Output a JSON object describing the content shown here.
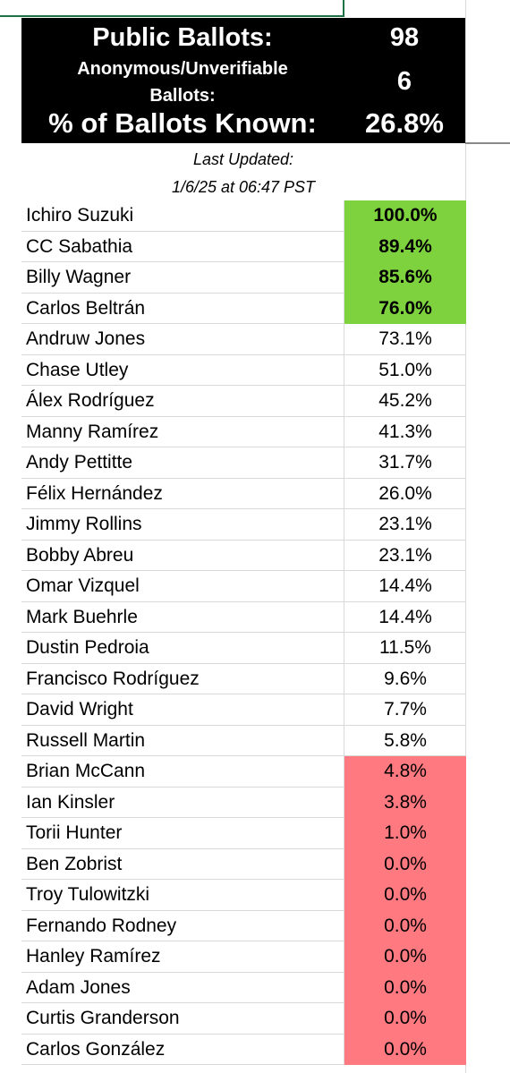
{
  "header": {
    "public_label": "Public Ballots:",
    "public_value": "98",
    "anon_label": "Anonymous/Unverifiable Ballots:",
    "anon_value": "6",
    "known_label": "% of Ballots Known:",
    "known_value": "26.8%"
  },
  "updated": {
    "line1": "Last Updated:",
    "line2": "1/6/25 at 06:47 PST"
  },
  "table": {
    "rows": [
      {
        "name": "Ichiro Suzuki",
        "value": "100.0%",
        "highlight": "#7ed23d"
      },
      {
        "name": "CC Sabathia",
        "value": "89.4%",
        "highlight": "#7ed23d"
      },
      {
        "name": "Billy Wagner",
        "value": "85.6%",
        "highlight": "#7ed23d"
      },
      {
        "name": "Carlos Beltrán",
        "value": "76.0%",
        "highlight": "#7ed23d"
      },
      {
        "name": "Andruw Jones",
        "value": "73.1%"
      },
      {
        "name": "Chase Utley",
        "value": "51.0%"
      },
      {
        "name": "Álex Rodríguez",
        "value": "45.2%"
      },
      {
        "name": "Manny Ramírez",
        "value": "41.3%"
      },
      {
        "name": "Andy Pettitte",
        "value": "31.7%"
      },
      {
        "name": "Félix Hernández",
        "value": "26.0%"
      },
      {
        "name": "Jimmy Rollins",
        "value": "23.1%"
      },
      {
        "name": "Bobby Abreu",
        "value": "23.1%"
      },
      {
        "name": "Omar Vizquel",
        "value": "14.4%"
      },
      {
        "name": "Mark Buehrle",
        "value": "14.4%"
      },
      {
        "name": "Dustin Pedroia",
        "value": "11.5%"
      },
      {
        "name": "Francisco Rodríguez",
        "value": "9.6%"
      },
      {
        "name": "David Wright",
        "value": "7.7%"
      },
      {
        "name": "Russell Martin",
        "value": "5.8%"
      },
      {
        "name": "Brian McCann",
        "value": "4.8%",
        "highlight": "#ff7a80"
      },
      {
        "name": "Ian Kinsler",
        "value": "3.8%",
        "highlight": "#ff7a80"
      },
      {
        "name": "Torii Hunter",
        "value": "1.0%",
        "highlight": "#ff7a80"
      },
      {
        "name": "Ben Zobrist",
        "value": "0.0%",
        "highlight": "#ff7a80"
      },
      {
        "name": "Troy Tulowitzki",
        "value": "0.0%",
        "highlight": "#ff7a80"
      },
      {
        "name": "Fernando Rodney",
        "value": "0.0%",
        "highlight": "#ff7a80"
      },
      {
        "name": "Hanley Ramírez",
        "value": "0.0%",
        "highlight": "#ff7a80"
      },
      {
        "name": "Adam Jones",
        "value": "0.0%",
        "highlight": "#ff7a80"
      },
      {
        "name": "Curtis Granderson",
        "value": "0.0%",
        "highlight": "#ff7a80"
      },
      {
        "name": "Carlos González",
        "value": "0.0%",
        "highlight": "#ff7a80"
      }
    ]
  }
}
